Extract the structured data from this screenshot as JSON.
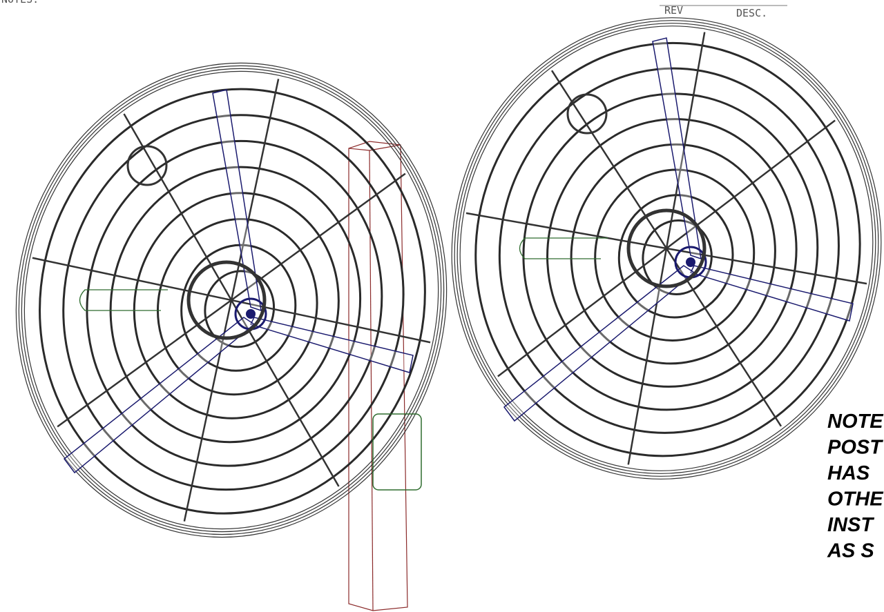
{
  "header": {
    "notes_label": "NOTES:",
    "rev": "REV",
    "desc": "DESC."
  },
  "note": {
    "lines": [
      "NOTE",
      "POST",
      "HAS",
      "OTHE",
      "INST",
      "AS S"
    ]
  }
}
